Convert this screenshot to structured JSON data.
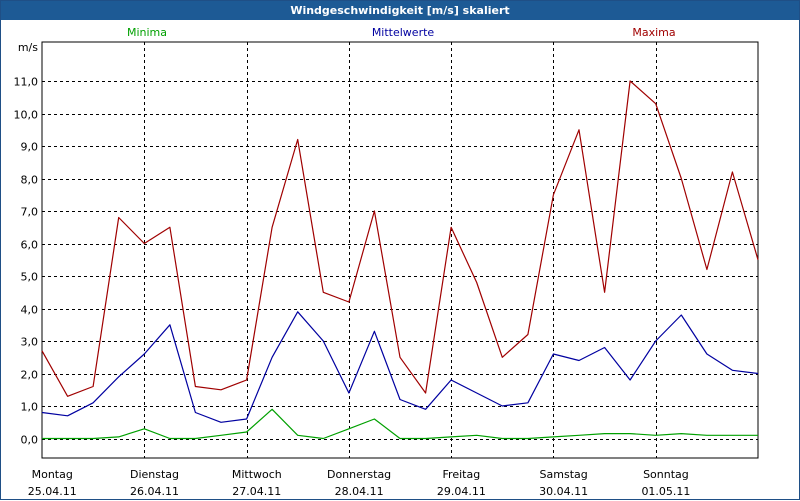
{
  "window": {
    "title": "Windgeschwindigkeit [m/s] skaliert"
  },
  "colors": {
    "minima": "#00a000",
    "mittelwerte": "#0000a0",
    "maxima": "#a00000",
    "titlebar": "#1d5a95"
  },
  "chart_data": {
    "type": "line",
    "title": "Windgeschwindigkeit [m/s] skaliert",
    "ylabel": "m/s",
    "ylim": [
      -0.6,
      12.2
    ],
    "yticks": [
      "0,0",
      "1,0",
      "2,0",
      "3,0",
      "4,0",
      "5,0",
      "6,0",
      "7,0",
      "8,0",
      "9,0",
      "10,0",
      "11,0"
    ],
    "grid": true,
    "legend_position": "top",
    "days": [
      {
        "name": "Montag",
        "date": "25.04.11"
      },
      {
        "name": "Dienstag",
        "date": "26.04.11"
      },
      {
        "name": "Mittwoch",
        "date": "27.04.11"
      },
      {
        "name": "Donnerstag",
        "date": "28.04.11"
      },
      {
        "name": "Freitag",
        "date": "29.04.11"
      },
      {
        "name": "Samstag",
        "date": "30.04.11"
      },
      {
        "name": "Sonntag",
        "date": "01.05.11"
      }
    ],
    "x_unit": "day index (0 = Montag 25.04.11 00:00)",
    "x": [
      0,
      0.25,
      0.5,
      0.75,
      1,
      1.25,
      1.5,
      1.75,
      2,
      2.25,
      2.5,
      2.75,
      3,
      3.25,
      3.5,
      3.75,
      4,
      4.25,
      4.5,
      4.75,
      5,
      5.25,
      5.5,
      5.75,
      6,
      6.25,
      6.5,
      6.75,
      7
    ],
    "series": [
      {
        "name": "Minima",
        "values": [
          0.0,
          0.0,
          0.0,
          0.05,
          0.3,
          0.0,
          0.0,
          0.1,
          0.2,
          0.9,
          0.1,
          0.0,
          0.3,
          0.6,
          0.0,
          0.0,
          0.05,
          0.1,
          0.0,
          0.0,
          0.05,
          0.1,
          0.15,
          0.15,
          0.1,
          0.15,
          0.1,
          0.1,
          0.1
        ]
      },
      {
        "name": "Mittelwerte",
        "values": [
          0.8,
          0.7,
          1.1,
          1.9,
          2.6,
          3.5,
          0.8,
          0.5,
          0.6,
          2.5,
          3.9,
          3.0,
          1.4,
          3.3,
          1.2,
          0.9,
          1.8,
          1.4,
          1.0,
          1.1,
          2.6,
          2.4,
          2.8,
          1.8,
          3.0,
          3.8,
          2.6,
          2.1,
          2.0
        ]
      },
      {
        "name": "Maxima",
        "values": [
          2.7,
          1.3,
          1.6,
          6.8,
          6.0,
          6.5,
          1.6,
          1.5,
          1.8,
          6.5,
          9.2,
          4.5,
          4.2,
          7.0,
          2.5,
          1.4,
          6.5,
          4.8,
          2.5,
          3.2,
          7.5,
          9.5,
          4.5,
          11.0,
          10.3,
          8.0,
          5.2,
          8.2,
          5.5
        ]
      }
    ]
  }
}
